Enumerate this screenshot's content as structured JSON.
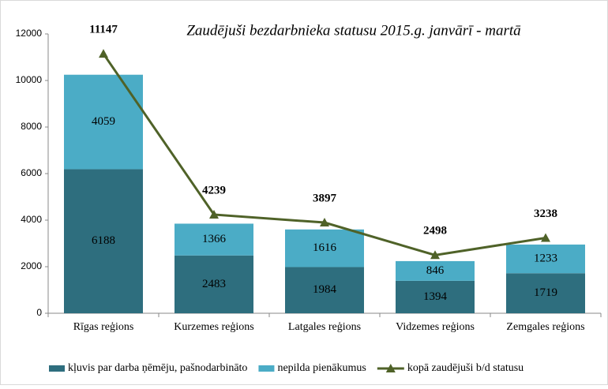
{
  "chart_data": {
    "type": "bar-line",
    "title": "Zaudējuši bezdarbnieka statusu 2015.g. janvārī - martā",
    "categories": [
      "Rīgas reģions",
      "Kurzemes reģions",
      "Latgales reģions",
      "Vidzemes reģions",
      "Zemgales reģions"
    ],
    "series": [
      {
        "name": "kļuvis par darba ņēmēju, pašnodarbināto",
        "color": "#2e6e7e",
        "kind": "bar",
        "values": [
          6188,
          2483,
          1984,
          1394,
          1719
        ]
      },
      {
        "name": "nepilda pienākumus",
        "color": "#4bacc6",
        "kind": "bar",
        "values": [
          4059,
          1366,
          1616,
          846,
          1233
        ]
      },
      {
        "name": "kopā zaudējuši b/d statusu",
        "color": "#4f6228",
        "kind": "line",
        "values": [
          11147,
          4239,
          3897,
          2498,
          3238
        ]
      }
    ],
    "ylim": [
      0,
      12000
    ],
    "yticks": [
      0,
      2000,
      4000,
      6000,
      8000,
      10000,
      12000
    ],
    "stacked": true,
    "grid": false,
    "legend": "bottom"
  }
}
